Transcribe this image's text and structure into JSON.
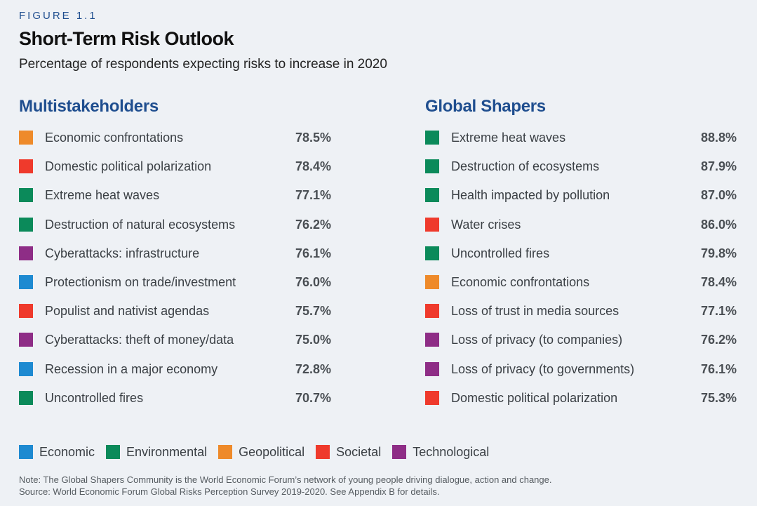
{
  "figure_label": "FIGURE 1.1",
  "colors": {
    "Economic": "#1e8ad1",
    "Environmental": "#0b8a5a",
    "Geopolitical": "#ee8a2a",
    "Societal": "#ef3a2c",
    "Technological": "#8e2d86"
  },
  "chart_data": {
    "type": "table",
    "title": "Short-Term Risk Outlook",
    "subtitle": "Percentage of respondents expecting risks to increase in 2020",
    "groups": [
      {
        "name": "Multistakeholders",
        "rows": [
          {
            "label": "Economic confrontations",
            "value": "78.5%",
            "category": "Geopolitical"
          },
          {
            "label": "Domestic political polarization",
            "value": "78.4%",
            "category": "Societal"
          },
          {
            "label": "Extreme heat waves",
            "value": "77.1%",
            "category": "Environmental"
          },
          {
            "label": "Destruction of natural ecosystems",
            "value": "76.2%",
            "category": "Environmental"
          },
          {
            "label": "Cyberattacks: infrastructure",
            "value": "76.1%",
            "category": "Technological"
          },
          {
            "label": "Protectionism on trade/investment",
            "value": "76.0%",
            "category": "Economic"
          },
          {
            "label": "Populist and nativist agendas",
            "value": "75.7%",
            "category": "Societal"
          },
          {
            "label": "Cyberattacks: theft of money/data",
            "value": "75.0%",
            "category": "Technological"
          },
          {
            "label": "Recession in a major economy",
            "value": "72.8%",
            "category": "Economic"
          },
          {
            "label": "Uncontrolled fires",
            "value": "70.7%",
            "category": "Environmental"
          }
        ]
      },
      {
        "name": "Global Shapers",
        "rows": [
          {
            "label": "Extreme heat waves",
            "value": "88.8%",
            "category": "Environmental"
          },
          {
            "label": "Destruction of ecosystems",
            "value": "87.9%",
            "category": "Environmental"
          },
          {
            "label": "Health impacted by pollution",
            "value": "87.0%",
            "category": "Environmental"
          },
          {
            "label": "Water crises",
            "value": "86.0%",
            "category": "Societal"
          },
          {
            "label": "Uncontrolled fires",
            "value": "79.8%",
            "category": "Environmental"
          },
          {
            "label": "Economic confrontations",
            "value": "78.4%",
            "category": "Geopolitical"
          },
          {
            "label": "Loss of trust in media sources",
            "value": "77.1%",
            "category": "Societal"
          },
          {
            "label": "Loss of privacy (to companies)",
            "value": "76.2%",
            "category": "Technological"
          },
          {
            "label": "Loss of privacy (to governments)",
            "value": "76.1%",
            "category": "Technological"
          },
          {
            "label": "Domestic political polarization",
            "value": "75.3%",
            "category": "Societal"
          }
        ]
      }
    ],
    "legend": [
      "Economic",
      "Environmental",
      "Geopolitical",
      "Societal",
      "Technological"
    ]
  },
  "note": "Note: The Global Shapers Community is the World Economic Forum’s network of young people driving dialogue, action and change.",
  "source": "Source: World Economic Forum Global Risks Perception Survey 2019-2020. See Appendix B for details."
}
